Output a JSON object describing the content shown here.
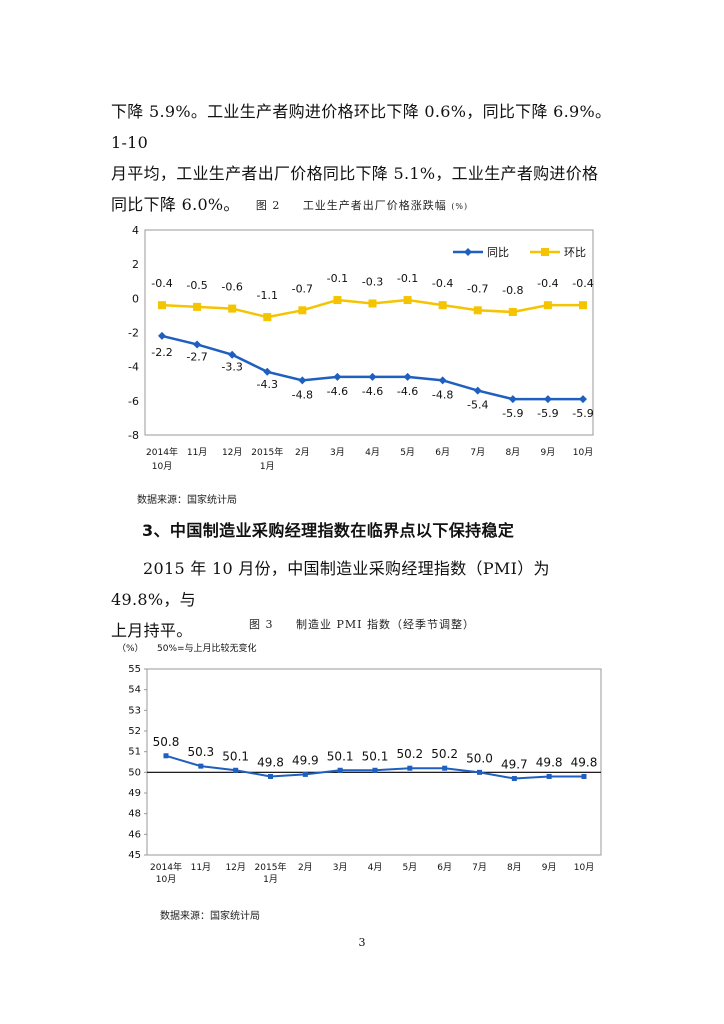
{
  "paragraphs": {
    "p1_line1": "下降 5.9%。工业生产者购进价格环比下降 0.6%，同比下降 6.9%。1-10",
    "p1_line2": "月平均，工业生产者出厂价格同比下降  5.1%，工业生产者购进价格",
    "p1_line3": "同比下降 6.0%。"
  },
  "figure2": {
    "label": "图 2",
    "title": "工业生产者出厂价格涨跌幅",
    "unit": "(%)",
    "source": "数据来源：国家统计局"
  },
  "section_heading": "3、中国制造业采购经理指数在临界点以下保持稳定",
  "paragraph2": {
    "line1": "2015 年 10 月份，中国制造业采购经理指数（PMI）为 49.8%，与",
    "line2": "上月持平。"
  },
  "figure3": {
    "label": "图 3",
    "title": "制造业 PMI 指数（经季节调整）",
    "source": "数据来源：国家统计局"
  },
  "page_number": "3",
  "chart_data": [
    {
      "type": "line",
      "categories": [
        [
          "2014年",
          "10月"
        ],
        [
          "11月"
        ],
        [
          "12月"
        ],
        [
          "2015年",
          "1月"
        ],
        [
          "2月"
        ],
        [
          "3月"
        ],
        [
          "4月"
        ],
        [
          "5月"
        ],
        [
          "6月"
        ],
        [
          "7月"
        ],
        [
          "8月"
        ],
        [
          "9月"
        ],
        [
          "10月"
        ]
      ],
      "series": [
        {
          "name": "同比",
          "color": "#1f5fbf",
          "marker": "diamond",
          "values": [
            -2.2,
            -2.7,
            -3.3,
            -4.3,
            -4.8,
            -4.6,
            -4.6,
            -4.6,
            -4.8,
            -5.4,
            -5.9,
            -5.9,
            -5.9
          ]
        },
        {
          "name": "环比",
          "color": "#f5c400",
          "marker": "square",
          "values": [
            -0.4,
            -0.5,
            -0.6,
            -1.1,
            -0.7,
            -0.1,
            -0.3,
            -0.1,
            -0.4,
            -0.7,
            -0.8,
            -0.4,
            -0.4
          ]
        }
      ],
      "ylim": [
        -8,
        4
      ],
      "yticks": [
        4,
        2,
        0,
        -2,
        -4,
        -6,
        -8
      ],
      "legend_position": "top-right",
      "grid": false
    },
    {
      "type": "line",
      "categories": [
        [
          "2014年",
          "10月"
        ],
        [
          "11月"
        ],
        [
          "12月"
        ],
        [
          "2015年",
          "1月"
        ],
        [
          "2月"
        ],
        [
          "3月"
        ],
        [
          "4月"
        ],
        [
          "5月"
        ],
        [
          "6月"
        ],
        [
          "7月"
        ],
        [
          "8月"
        ],
        [
          "9月"
        ],
        [
          "10月"
        ]
      ],
      "series": [
        {
          "color": "#1f5fbf",
          "marker": "square",
          "values": [
            50.8,
            50.3,
            50.1,
            49.8,
            49.9,
            50.1,
            50.1,
            50.2,
            50.2,
            50.0,
            49.7,
            49.8,
            49.8
          ],
          "labels": [
            "50.8",
            "50.3",
            "50.1",
            "49.8",
            "49.9",
            "50.1",
            "50.1",
            "50.2",
            "50.2",
            "50.0",
            "49.7",
            "49.8",
            "49.8"
          ]
        }
      ],
      "ylim": [
        45,
        55
      ],
      "yticks": [
        "55",
        "54",
        "53",
        "52",
        "51",
        "50",
        "49",
        "48",
        "46",
        "45"
      ],
      "reference_line": 50,
      "ylabel": "（%）",
      "annotation": "50%=与上月比较无变化",
      "grid": false
    }
  ]
}
